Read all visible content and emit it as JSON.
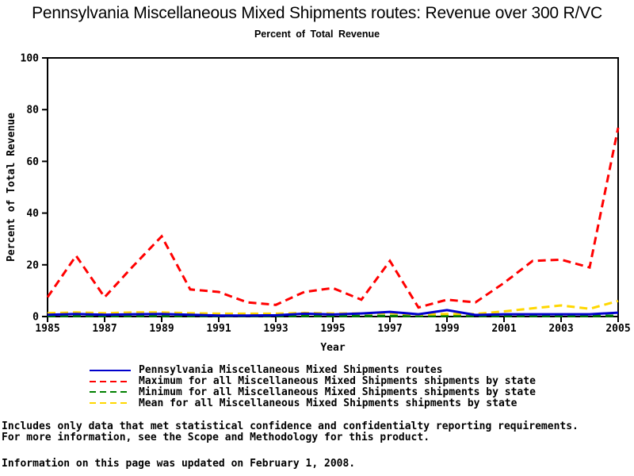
{
  "chart_data": {
    "type": "line",
    "title": "Pennsylvania Miscellaneous Mixed Shipments routes: Revenue over 300 R/VC",
    "subtitle": "Percent of Total Revenue",
    "xlabel": "Year",
    "ylabel": "Percent of Total Revenue",
    "xlim": [
      1985,
      2005
    ],
    "ylim": [
      0,
      100
    ],
    "xticks": [
      1985,
      1987,
      1989,
      1991,
      1993,
      1995,
      1997,
      1999,
      2001,
      2003,
      2005
    ],
    "yticks": [
      0,
      20,
      40,
      60,
      80,
      100
    ],
    "grid": false,
    "legend_position": "bottom",
    "x": [
      1985,
      1986,
      1987,
      1988,
      1989,
      1990,
      1991,
      1992,
      1993,
      1994,
      1995,
      1996,
      1997,
      1998,
      1999,
      2000,
      2001,
      2002,
      2003,
      2004,
      2005
    ],
    "series": [
      {
        "name": "Pennsylvania Miscellaneous Mixed Shipments routes",
        "color": "#0000CC",
        "style": "solid",
        "values": [
          0.7,
          1.0,
          0.7,
          0.9,
          1.0,
          0.7,
          0.4,
          0.4,
          0.5,
          1.1,
          0.8,
          1.2,
          1.8,
          0.9,
          2.5,
          0.6,
          0.9,
          0.9,
          0.9,
          0.9,
          1.5
        ]
      },
      {
        "name": "Maximum for all Miscellaneous Mixed Shipments shipments by state",
        "color": "#FF0000",
        "style": "dashed",
        "values": [
          7.5,
          23.5,
          7.5,
          19.5,
          31.0,
          10.5,
          9.5,
          5.5,
          4.5,
          9.5,
          11.0,
          6.5,
          21.5,
          3.5,
          6.5,
          5.5,
          13.0,
          21.5,
          22.0,
          19.0,
          73.0
        ]
      },
      {
        "name": "Minimum for all Miscellaneous Mixed Shipments shipments by state",
        "color": "#008000",
        "style": "dashed",
        "values": [
          0.2,
          0.2,
          0.2,
          0.2,
          0.2,
          0.2,
          0.2,
          0.2,
          0.2,
          0.2,
          0.2,
          0.2,
          0.2,
          0.2,
          0.2,
          0.2,
          0.2,
          0.2,
          0.2,
          0.2,
          0.3
        ]
      },
      {
        "name": "Mean for all Miscellaneous Mixed Shipments shipments by state",
        "color": "#FFD700",
        "style": "dashed",
        "values": [
          1.3,
          1.6,
          1.3,
          1.6,
          1.6,
          1.3,
          1.1,
          1.1,
          1.1,
          1.4,
          1.2,
          1.2,
          1.3,
          0.8,
          1.0,
          1.0,
          2.0,
          3.2,
          4.3,
          3.0,
          6.0
        ]
      }
    ]
  },
  "footer": {
    "line1": "Includes only data that met statistical confidence and confidentialty reporting requirements.",
    "line2": "For more information, see the Scope and Methodology for this product.",
    "line3": "Information on this page was updated on February 1, 2008."
  }
}
